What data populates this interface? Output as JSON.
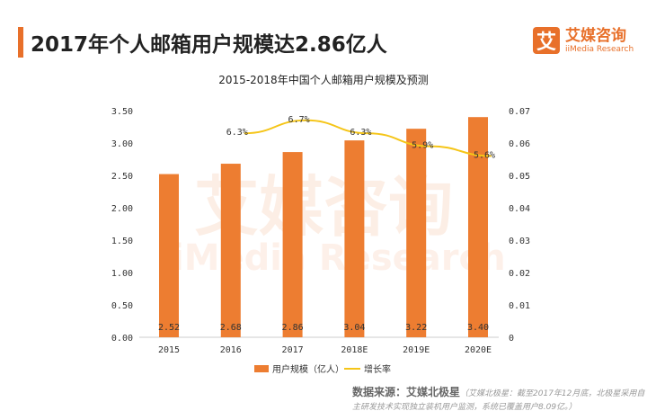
{
  "header": {
    "title": "2017年个人邮箱用户规模达2.86亿人",
    "logo_cn": "艾媒咨询",
    "logo_en": "iiMedia Research",
    "logo_mark": "艾"
  },
  "watermark": {
    "cn": "艾媒咨询",
    "en": "iiMedia Research"
  },
  "source": {
    "label": "数据来源：艾媒北极星",
    "note": "（艾媒北极星：截至2017年12月底，北极星采用自主研发技术实现独立装机用户监测，系统已覆盖用户8.09亿。）"
  },
  "chart_data": {
    "type": "bar+line",
    "title": "2015-2018年中国个人邮箱用户规模及预测",
    "categories": [
      "2015",
      "2016",
      "2017",
      "2018E",
      "2019E",
      "2020E"
    ],
    "series": [
      {
        "name": "用户规模（亿人）",
        "type": "bar",
        "axis": "left",
        "color": "#ed7d31",
        "values": [
          2.52,
          2.68,
          2.86,
          3.04,
          3.22,
          3.4
        ],
        "labels": [
          "2.52",
          "2.68",
          "2.86",
          "3.04",
          "3.22",
          "3.40"
        ]
      },
      {
        "name": "增长率",
        "type": "line",
        "axis": "right",
        "color": "#f5c518",
        "values": [
          null,
          0.063,
          0.067,
          0.063,
          0.059,
          0.056
        ],
        "labels": [
          "",
          "6.3%",
          "6.7%",
          "6.3%",
          "5.9%",
          "5.6%"
        ]
      }
    ],
    "yleft": {
      "range": [
        0,
        3.5
      ],
      "ticks": [
        "0.00",
        "0.50",
        "1.00",
        "1.50",
        "2.00",
        "2.50",
        "3.00",
        "3.50"
      ]
    },
    "yright": {
      "range": [
        0,
        0.07
      ],
      "ticks": [
        "0",
        "0.01",
        "0.02",
        "0.03",
        "0.04",
        "0.05",
        "0.06",
        "0.07"
      ]
    },
    "grid": false,
    "legend": "bottom"
  }
}
